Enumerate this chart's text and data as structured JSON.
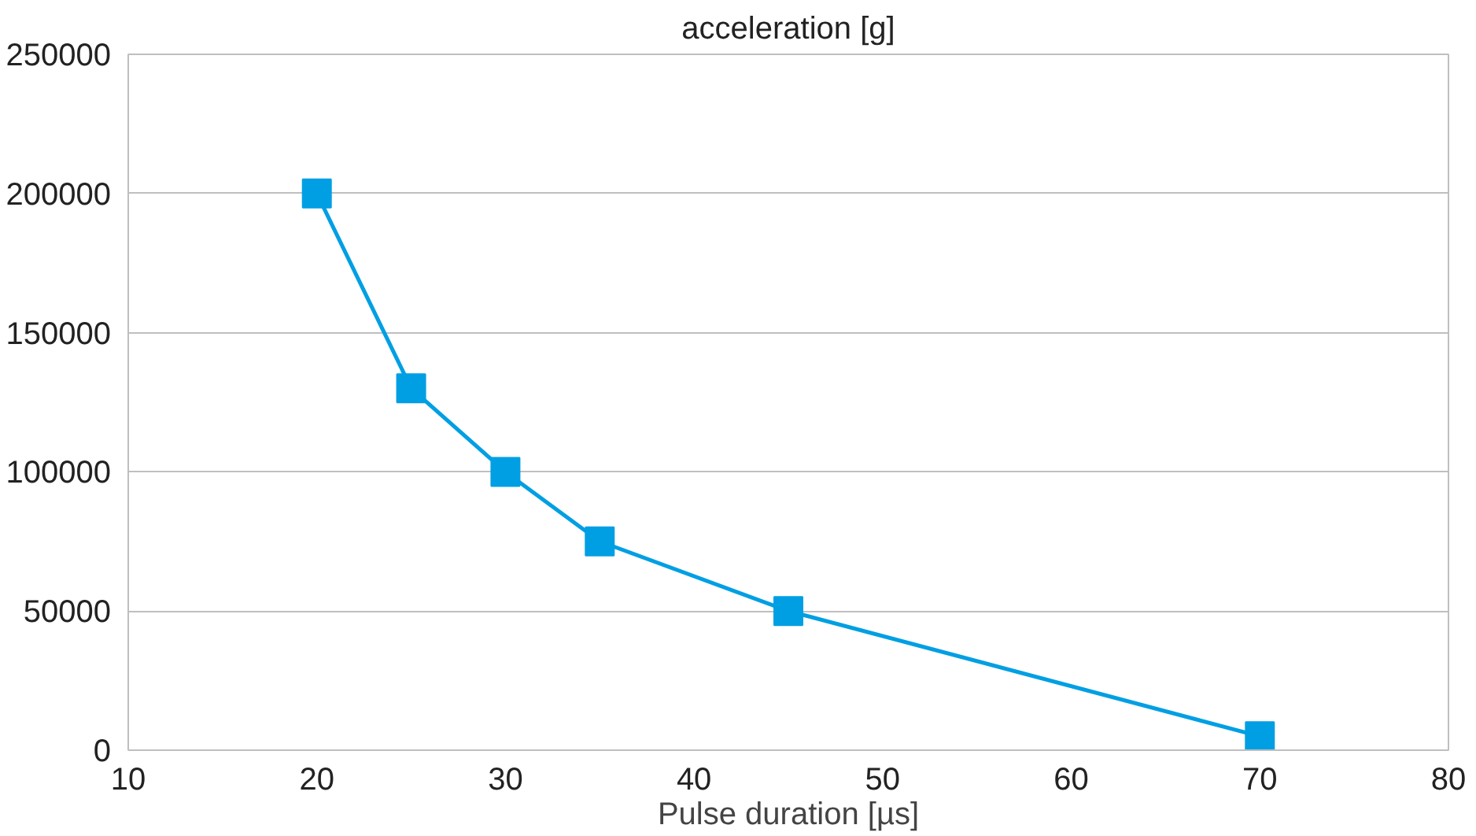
{
  "chart_data": {
    "type": "line",
    "title": "acceleration [g]",
    "xlabel": "Pulse duration [µs]",
    "x": [
      20,
      25,
      30,
      35,
      45,
      70
    ],
    "series": [
      {
        "color": "#009fe3",
        "values": [
          200000,
          130000,
          100000,
          75000,
          50000,
          5000
        ]
      }
    ],
    "xlim": [
      10,
      80
    ],
    "ylim": [
      0,
      250000
    ],
    "xticks": [
      10,
      20,
      30,
      40,
      50,
      60,
      70,
      80
    ],
    "yticks": [
      0,
      50000,
      100000,
      150000,
      200000,
      250000
    ],
    "grid": "y",
    "marker": "square"
  }
}
